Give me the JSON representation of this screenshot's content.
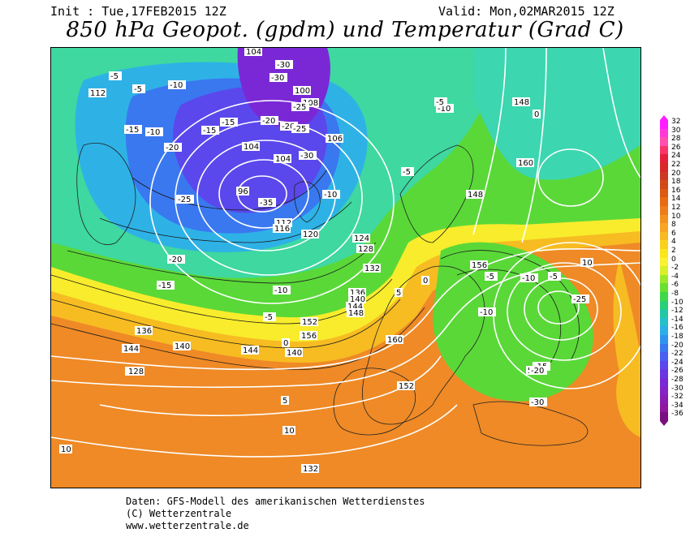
{
  "header": {
    "init": "Init : Tue,17FEB2015 12Z",
    "valid": "Valid: Mon,02MAR2015 12Z",
    "title": "850 hPa Geopot. (gpdm) und Temperatur (Grad C)"
  },
  "legend": {
    "values": [
      "32",
      "30",
      "28",
      "26",
      "24",
      "22",
      "20",
      "18",
      "16",
      "14",
      "12",
      "10",
      "8",
      "6",
      "4",
      "2",
      "0",
      "-2",
      "-4",
      "-6",
      "-8",
      "-10",
      "-12",
      "-14",
      "-16",
      "-18",
      "-20",
      "-22",
      "-24",
      "-26",
      "-28",
      "-30",
      "-32",
      "-34",
      "-36"
    ],
    "colors": [
      "#ff1dff",
      "#ff38d8",
      "#ff4fb0",
      "#f8346a",
      "#e6203c",
      "#d8282a",
      "#cc3a22",
      "#d24a18",
      "#dc5a14",
      "#e86a12",
      "#ef7c1a",
      "#f3921e",
      "#f6a624",
      "#f8ba22",
      "#fad21e",
      "#fbe61c",
      "#f8f230",
      "#d8f02c",
      "#9ce82a",
      "#6ae030",
      "#3ed84a",
      "#28d078",
      "#22c8a4",
      "#26c0cc",
      "#2ab0e6",
      "#3094ee",
      "#3a78f0",
      "#4a5ef0",
      "#5a48ec",
      "#6a36e2",
      "#7a28d6",
      "#8422c6",
      "#8a1cb4",
      "#8e189e",
      "#7a1080"
    ]
  },
  "labels": {
    "geopot": [
      "104",
      "112",
      "100",
      "96",
      "104",
      "108",
      "106",
      "104",
      "112",
      "116",
      "120",
      "124",
      "128",
      "132",
      "136",
      "140",
      "144",
      "148",
      "152",
      "156",
      "160",
      "152",
      "148",
      "144",
      "140",
      "132",
      "128",
      "136",
      "140",
      "144",
      "156",
      "160",
      "148",
      "148"
    ],
    "temp": [
      "-5",
      "-10",
      "-15",
      "-20",
      "-25",
      "-30",
      "-20",
      "-25",
      "-15",
      "-10",
      "-5",
      "0",
      "5",
      "10",
      "-20",
      "-15",
      "-10",
      "-5",
      "0",
      "5",
      "10",
      "-10",
      "-5",
      "0",
      "5",
      "10",
      "-30",
      "-25",
      "-35",
      "-30",
      "-20",
      "-15",
      "-10",
      "-5",
      "-5",
      "-10",
      "-5",
      "-10",
      "-15",
      "-20",
      "-25",
      "-30"
    ]
  },
  "footer": {
    "line1": "Daten: GFS-Modell des amerikanischen Wetterdienstes",
    "line2": "(C) Wetterzentrale",
    "line3": "www.wetterzentrale.de"
  }
}
